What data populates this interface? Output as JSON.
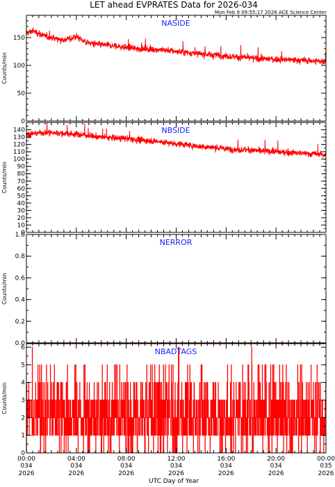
{
  "title": "LET ahead EVPRATES Data for 2026-034",
  "timestamp": "Mon Feb  9 09:55:17 2026 ACE Science Center",
  "x_axis_title": "UTC Day of Year",
  "x_ticks": [
    {
      "time": "00:00",
      "day": "034",
      "year": "2026",
      "hour": 0
    },
    {
      "time": "04:00",
      "day": "034",
      "year": "2026",
      "hour": 4
    },
    {
      "time": "08:00",
      "day": "034",
      "year": "2026",
      "hour": 8
    },
    {
      "time": "12:00",
      "day": "034",
      "year": "2026",
      "hour": 12
    },
    {
      "time": "16:00",
      "day": "034",
      "year": "2026",
      "hour": 16
    },
    {
      "time": "20:00",
      "day": "034",
      "year": "2026",
      "hour": 20
    },
    {
      "time": "00:00",
      "day": "035",
      "year": "2026",
      "hour": 24
    }
  ],
  "series_color": "#ff0000",
  "label_color": "#1a1aff",
  "chart_data": [
    {
      "type": "line",
      "name": "NASIDE",
      "ylabel": "Counts/min",
      "ylim": [
        0,
        190
      ],
      "yticks": [
        0,
        50,
        100,
        150
      ],
      "x_hours": [
        0,
        0.5,
        1,
        1.5,
        2,
        2.5,
        3,
        3.5,
        4,
        4.5,
        5,
        6,
        7,
        8,
        9,
        10,
        11,
        12,
        13,
        14,
        15,
        16,
        17,
        18,
        19,
        20,
        21,
        22,
        23,
        24
      ],
      "trend": [
        158,
        162,
        158,
        152,
        150,
        148,
        146,
        148,
        152,
        145,
        140,
        137,
        135,
        132,
        130,
        129,
        128,
        125,
        123,
        120,
        119,
        117,
        115,
        113,
        112,
        111,
        110,
        109,
        108,
        107
      ],
      "noise": 7
    },
    {
      "type": "line",
      "name": "NBSIDE",
      "ylabel": "Counts/min",
      "ylim": [
        0,
        150
      ],
      "yticks": [
        0,
        10,
        20,
        30,
        40,
        50,
        60,
        70,
        80,
        90,
        100,
        110,
        120,
        130,
        140
      ],
      "x_hours": [
        0,
        1,
        2,
        3,
        4,
        5,
        6,
        7,
        8,
        9,
        10,
        11,
        12,
        13,
        14,
        15,
        16,
        17,
        18,
        19,
        20,
        21,
        22,
        23,
        24
      ],
      "trend": [
        133,
        136,
        136,
        135,
        134,
        132,
        130,
        129,
        128,
        126,
        125,
        123,
        121,
        119,
        117,
        116,
        114,
        113,
        112,
        111,
        110,
        109,
        108,
        107,
        106
      ],
      "noise": 5
    },
    {
      "type": "line",
      "name": "NERROR",
      "ylabel": "Counts/min",
      "ylim": [
        0,
        1.0
      ],
      "yticks": [
        0.0,
        0.2,
        0.4,
        0.6,
        0.8,
        1.0
      ],
      "constant_value": 0
    },
    {
      "type": "line",
      "name": "NBADTAGS",
      "ylabel": "Counts/min",
      "ylim": [
        0,
        6.2
      ],
      "yticks": [
        0,
        1,
        2,
        3,
        4,
        5,
        6
      ],
      "value_distribution": {
        "0": 0.07,
        "1": 0.25,
        "2": 0.3,
        "3": 0.24,
        "4": 0.1,
        "5": 0.035,
        "6": 0.005
      },
      "xlim_hours": [
        0,
        24
      ]
    }
  ]
}
